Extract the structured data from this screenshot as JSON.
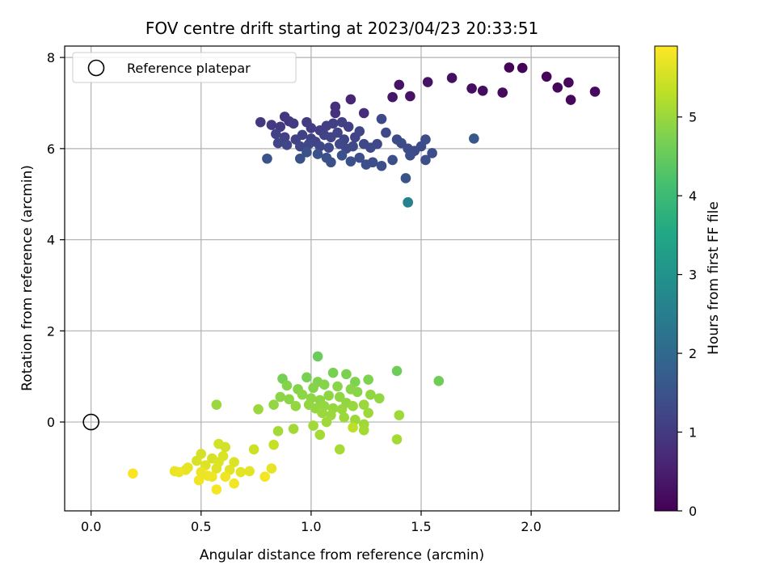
{
  "chart_data": {
    "type": "scatter",
    "title": "FOV centre drift starting at 2023/04/23 20:33:51",
    "xlabel": "Angular distance from reference (arcmin)",
    "ylabel": "Rotation from reference (arcmin)",
    "xlim": [
      -0.12,
      2.4
    ],
    "ylim": [
      -1.95,
      8.25
    ],
    "xticks": [
      0.0,
      0.5,
      1.0,
      1.5,
      2.0
    ],
    "xtick_labels": [
      "0.0",
      "0.5",
      "1.0",
      "1.5",
      "2.0"
    ],
    "yticks": [
      0,
      2,
      4,
      6,
      8
    ],
    "ytick_labels": [
      "0",
      "2",
      "4",
      "6",
      "8"
    ],
    "grid": true,
    "legend": {
      "position": "top-left",
      "entries": [
        "Reference platepar"
      ]
    },
    "reference_point": {
      "x": 0.0,
      "y": 0.0,
      "label": "Reference platepar"
    },
    "colormap": "viridis",
    "colorbar": {
      "label": "Hours from first FF file",
      "range": [
        0,
        5.9
      ],
      "ticks": [
        0,
        1,
        2,
        3,
        4,
        5
      ],
      "tick_labels": [
        "0",
        "1",
        "2",
        "3",
        "4",
        "5"
      ]
    },
    "points": [
      [
        1.9,
        7.78,
        0.05
      ],
      [
        1.96,
        7.77,
        0.06
      ],
      [
        2.07,
        7.58,
        0.08
      ],
      [
        2.12,
        7.34,
        0.1
      ],
      [
        2.17,
        7.45,
        0.12
      ],
      [
        2.18,
        7.07,
        0.14
      ],
      [
        2.29,
        7.25,
        0.16
      ],
      [
        1.87,
        7.23,
        0.18
      ],
      [
        1.78,
        7.27,
        0.2
      ],
      [
        1.73,
        7.32,
        0.22
      ],
      [
        1.64,
        7.55,
        0.25
      ],
      [
        1.53,
        7.46,
        0.28
      ],
      [
        1.45,
        7.15,
        0.3
      ],
      [
        1.4,
        7.4,
        0.32
      ],
      [
        1.37,
        7.13,
        0.35
      ],
      [
        1.18,
        7.08,
        0.6
      ],
      [
        1.24,
        6.78,
        0.75
      ],
      [
        1.11,
        6.92,
        0.8
      ],
      [
        1.11,
        6.78,
        0.85
      ],
      [
        0.88,
        6.7,
        0.9
      ],
      [
        0.9,
        6.6,
        0.92
      ],
      [
        0.77,
        6.58,
        0.95
      ],
      [
        0.82,
        6.52,
        1.0
      ],
      [
        0.86,
        6.48,
        1.0
      ],
      [
        0.92,
        6.55,
        1.02
      ],
      [
        0.98,
        6.58,
        1.03
      ],
      [
        1.0,
        6.45,
        1.05
      ],
      [
        1.04,
        6.4,
        1.05
      ],
      [
        1.07,
        6.5,
        1.07
      ],
      [
        1.1,
        6.55,
        1.08
      ],
      [
        1.14,
        6.58,
        1.1
      ],
      [
        1.17,
        6.48,
        1.1
      ],
      [
        0.84,
        6.32,
        1.12
      ],
      [
        0.88,
        6.25,
        1.12
      ],
      [
        0.93,
        6.2,
        1.13
      ],
      [
        0.96,
        6.3,
        1.14
      ],
      [
        1.0,
        6.22,
        1.15
      ],
      [
        1.02,
        6.15,
        1.16
      ],
      [
        1.06,
        6.3,
        1.17
      ],
      [
        1.09,
        6.25,
        1.18
      ],
      [
        1.12,
        6.35,
        1.19
      ],
      [
        1.15,
        6.2,
        1.2
      ],
      [
        1.2,
        6.25,
        1.2
      ],
      [
        1.22,
        6.38,
        1.2
      ],
      [
        0.85,
        6.12,
        1.21
      ],
      [
        0.89,
        6.08,
        1.22
      ],
      [
        0.95,
        6.05,
        1.23
      ],
      [
        0.99,
        6.1,
        1.24
      ],
      [
        1.04,
        6.05,
        1.25
      ],
      [
        1.08,
        6.02,
        1.26
      ],
      [
        1.13,
        6.1,
        1.27
      ],
      [
        1.16,
        6.0,
        1.28
      ],
      [
        1.19,
        6.05,
        1.28
      ],
      [
        1.24,
        6.1,
        1.29
      ],
      [
        1.27,
        6.02,
        1.3
      ],
      [
        1.3,
        6.1,
        1.3
      ],
      [
        1.34,
        6.35,
        1.31
      ],
      [
        1.32,
        6.65,
        1.32
      ],
      [
        1.39,
        6.2,
        1.33
      ],
      [
        1.41,
        6.12,
        1.34
      ],
      [
        1.44,
        6.0,
        1.35
      ],
      [
        1.47,
        5.95,
        1.36
      ],
      [
        1.5,
        6.05,
        1.36
      ],
      [
        1.52,
        6.2,
        1.37
      ],
      [
        1.55,
        5.9,
        1.38
      ],
      [
        1.52,
        5.75,
        1.39
      ],
      [
        1.45,
        5.85,
        1.4
      ],
      [
        1.37,
        5.75,
        1.41
      ],
      [
        1.32,
        5.62,
        1.42
      ],
      [
        1.28,
        5.7,
        1.42
      ],
      [
        1.25,
        5.65,
        1.43
      ],
      [
        1.22,
        5.8,
        1.43
      ],
      [
        1.18,
        5.72,
        1.44
      ],
      [
        1.14,
        5.85,
        1.44
      ],
      [
        1.09,
        5.7,
        1.45
      ],
      [
        1.07,
        5.8,
        1.45
      ],
      [
        1.03,
        5.88,
        1.46
      ],
      [
        0.98,
        5.92,
        1.46
      ],
      [
        0.95,
        5.78,
        1.47
      ],
      [
        0.8,
        5.78,
        1.5
      ],
      [
        1.43,
        5.35,
        1.52
      ],
      [
        1.74,
        6.22,
        1.6
      ],
      [
        1.44,
        4.82,
        2.5
      ],
      [
        1.44,
        4.82,
        2.6
      ],
      [
        1.03,
        1.44,
        4.55
      ],
      [
        1.39,
        1.12,
        4.58
      ],
      [
        1.58,
        0.9,
        4.6
      ],
      [
        0.87,
        0.95,
        4.65
      ],
      [
        0.98,
        0.98,
        4.68
      ],
      [
        1.1,
        1.08,
        4.7
      ],
      [
        1.16,
        1.05,
        4.72
      ],
      [
        1.26,
        0.93,
        4.75
      ],
      [
        1.2,
        0.88,
        4.75
      ],
      [
        1.03,
        0.88,
        4.78
      ],
      [
        0.89,
        0.8,
        4.8
      ],
      [
        0.94,
        0.72,
        4.8
      ],
      [
        1.01,
        0.75,
        4.82
      ],
      [
        1.06,
        0.82,
        4.83
      ],
      [
        1.12,
        0.78,
        4.85
      ],
      [
        1.18,
        0.72,
        4.85
      ],
      [
        1.21,
        0.66,
        4.86
      ],
      [
        0.86,
        0.55,
        4.87
      ],
      [
        0.9,
        0.5,
        4.88
      ],
      [
        0.96,
        0.6,
        4.88
      ],
      [
        1.0,
        0.52,
        4.89
      ],
      [
        1.04,
        0.48,
        4.9
      ],
      [
        1.08,
        0.58,
        4.9
      ],
      [
        1.13,
        0.55,
        4.91
      ],
      [
        1.16,
        0.42,
        4.92
      ],
      [
        1.27,
        0.6,
        4.92
      ],
      [
        1.31,
        0.52,
        4.93
      ],
      [
        0.83,
        0.38,
        4.94
      ],
      [
        0.93,
        0.35,
        4.95
      ],
      [
        0.99,
        0.38,
        4.95
      ],
      [
        1.02,
        0.3,
        4.96
      ],
      [
        1.06,
        0.35,
        4.96
      ],
      [
        1.1,
        0.3,
        4.97
      ],
      [
        1.14,
        0.28,
        4.98
      ],
      [
        1.19,
        0.35,
        4.98
      ],
      [
        1.24,
        0.38,
        4.99
      ],
      [
        0.76,
        0.28,
        5.0
      ],
      [
        0.57,
        0.38,
        5.0
      ],
      [
        1.05,
        0.2,
        5.0
      ],
      [
        1.09,
        0.15,
        5.01
      ],
      [
        1.15,
        0.1,
        5.02
      ],
      [
        1.2,
        0.05,
        5.03
      ],
      [
        1.26,
        0.2,
        5.03
      ],
      [
        1.4,
        0.15,
        5.04
      ],
      [
        1.24,
        -0.05,
        5.05
      ],
      [
        1.07,
        0.0,
        5.05
      ],
      [
        1.01,
        -0.08,
        5.06
      ],
      [
        0.92,
        -0.15,
        5.07
      ],
      [
        0.85,
        -0.2,
        5.08
      ],
      [
        1.04,
        -0.28,
        5.09
      ],
      [
        1.24,
        -0.18,
        5.1
      ],
      [
        1.39,
        -0.38,
        5.1
      ],
      [
        1.13,
        -0.6,
        5.12
      ],
      [
        1.19,
        -0.12,
        5.3
      ],
      [
        0.83,
        -0.5,
        5.4
      ],
      [
        0.74,
        -0.6,
        5.45
      ],
      [
        0.58,
        -0.48,
        5.5
      ],
      [
        0.61,
        -0.55,
        5.5
      ],
      [
        0.5,
        -0.7,
        5.52
      ],
      [
        0.48,
        -0.85,
        5.55
      ],
      [
        0.55,
        -0.8,
        5.55
      ],
      [
        0.58,
        -0.88,
        5.58
      ],
      [
        0.6,
        -0.75,
        5.58
      ],
      [
        0.65,
        -0.88,
        5.6
      ],
      [
        0.52,
        -0.95,
        5.62
      ],
      [
        0.57,
        -1.02,
        5.63
      ],
      [
        0.63,
        -1.05,
        5.64
      ],
      [
        0.68,
        -1.1,
        5.65
      ],
      [
        0.72,
        -1.08,
        5.66
      ],
      [
        0.82,
        -1.02,
        5.68
      ],
      [
        0.44,
        -1.0,
        5.7
      ],
      [
        0.43,
        -1.05,
        5.7
      ],
      [
        0.38,
        -1.08,
        5.72
      ],
      [
        0.4,
        -1.1,
        5.73
      ],
      [
        0.5,
        -1.1,
        5.74
      ],
      [
        0.53,
        -1.18,
        5.75
      ],
      [
        0.55,
        -1.2,
        5.76
      ],
      [
        0.49,
        -1.28,
        5.77
      ],
      [
        0.61,
        -1.2,
        5.78
      ],
      [
        0.65,
        -1.35,
        5.79
      ],
      [
        0.79,
        -1.2,
        5.8
      ],
      [
        0.57,
        -1.48,
        5.82
      ],
      [
        0.19,
        -1.13,
        5.85
      ]
    ]
  }
}
